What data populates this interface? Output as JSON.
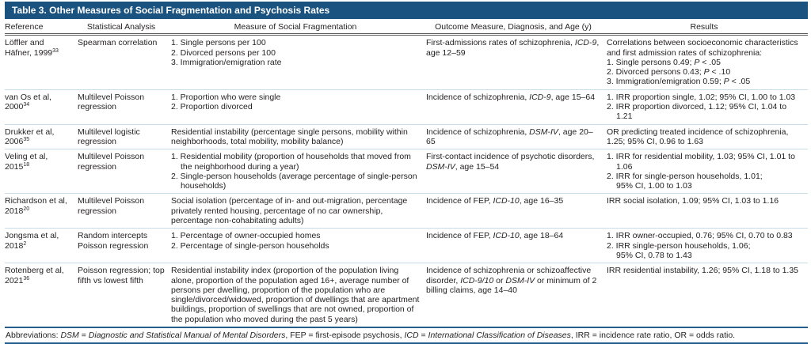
{
  "colors": {
    "header_bar": "#1b5380",
    "rule_blue": "#255d8c",
    "row_divider": "#c9dcea"
  },
  "table": {
    "title": "Table 3. Other Measures of Social Fragmentation and Psychosis Rates",
    "columns": [
      "Reference",
      "Statistical Analysis",
      "Measure of Social Fragmentation",
      "Outcome Measure, Diagnosis, and Age (y)",
      "Results"
    ],
    "rows": [
      {
        "reference": [
          {
            "s": [
              "Löffler and Häfner, 1999",
              {
                "t": "33",
                "sup": true
              }
            ]
          }
        ],
        "analysis": [
          {
            "s": [
              "Spearman correlation"
            ]
          }
        ],
        "measure": [
          {
            "s": [
              "1. Single persons per 100"
            ],
            "hang": true
          },
          {
            "s": [
              "2. Divorced persons per 100"
            ],
            "hang": true
          },
          {
            "s": [
              "3. Immigration/emigration rate"
            ],
            "hang": true
          }
        ],
        "outcome": [
          {
            "s": [
              "First-admissions rates of schizophrenia, ",
              {
                "t": "ICD-9",
                "i": true
              },
              ", age 12–59"
            ]
          }
        ],
        "results": [
          {
            "s": [
              "Correlations between socioeconomic characteristics and first admission rates of schizophrenia:"
            ]
          },
          {
            "s": [
              "1. Single persons 0.49; ",
              {
                "t": "P",
                "i": true
              },
              " < .05"
            ],
            "hang": true
          },
          {
            "s": [
              "2. Divorced persons 0.43; ",
              {
                "t": "P",
                "i": true
              },
              " < .10"
            ],
            "hang": true
          },
          {
            "s": [
              "3. Immigration/emigration 0.59; ",
              {
                "t": "P",
                "i": true
              },
              " < .05"
            ],
            "hang": true
          }
        ]
      },
      {
        "reference": [
          {
            "s": [
              "van Os et al, 2000",
              {
                "t": "34",
                "sup": true
              }
            ]
          }
        ],
        "analysis": [
          {
            "s": [
              "Multilevel Poisson regression"
            ]
          }
        ],
        "measure": [
          {
            "s": [
              "1. Proportion who were single"
            ],
            "hang": true
          },
          {
            "s": [
              "2. Proportion divorced"
            ],
            "hang": true
          }
        ],
        "outcome": [
          {
            "s": [
              "Incidence of schizophrenia, ",
              {
                "t": "ICD-9",
                "i": true
              },
              ", age 15–64"
            ]
          }
        ],
        "results": [
          {
            "s": [
              "1. IRR proportion single, 1.02; 95% CI, 1.00 to 1.03"
            ],
            "hang": true
          },
          {
            "s": [
              "2. IRR proportion divorced, 1.12; 95% CI, 1.04 to 1.21"
            ],
            "hang": true
          }
        ]
      },
      {
        "reference": [
          {
            "s": [
              "Drukker et al, 2006",
              {
                "t": "35",
                "sup": true
              }
            ]
          }
        ],
        "analysis": [
          {
            "s": [
              "Multilevel logistic regression"
            ]
          }
        ],
        "measure": [
          {
            "s": [
              "Residential instability (percentage single persons, mobility within neighborhoods, total mobility, mobility balance)"
            ]
          }
        ],
        "outcome": [
          {
            "s": [
              "Incidence of schizophrenia, ",
              {
                "t": "DSM-IV",
                "i": true
              },
              ", age 20–65"
            ]
          }
        ],
        "results": [
          {
            "s": [
              "OR predicting treated incidence of schizophrenia, 1.25; 95% CI, 0.96 to 1.63"
            ]
          }
        ]
      },
      {
        "reference": [
          {
            "s": [
              "Veling et al, 2015",
              {
                "t": "18",
                "sup": true
              }
            ]
          }
        ],
        "analysis": [
          {
            "s": [
              "Multilevel Poisson regression"
            ]
          }
        ],
        "measure": [
          {
            "s": [
              "1. Residential mobility (proportion of households that moved from the neighborhood during a year)"
            ],
            "hang": true
          },
          {
            "s": [
              "2. Single-person households (average percentage of single-person households)"
            ],
            "hang": true
          }
        ],
        "outcome": [
          {
            "s": [
              "First-contact incidence of psychotic disorders, ",
              {
                "t": "DSM-IV",
                "i": true
              },
              ", age 15–54"
            ]
          }
        ],
        "results": [
          {
            "s": [
              "1. IRR for residential mobility, 1.03; 95% CI, 1.01 to 1.06"
            ],
            "hang": true
          },
          {
            "s": [
              "2. IRR for single-person households, 1.01;"
            ],
            "hang": true
          },
          {
            "s": [
              "95% CI, 1.00 to 1.03"
            ],
            "cont": true
          }
        ]
      },
      {
        "reference": [
          {
            "s": [
              "Richardson et al, 2018",
              {
                "t": "20",
                "sup": true
              }
            ]
          }
        ],
        "analysis": [
          {
            "s": [
              "Multilevel Poisson regression"
            ]
          }
        ],
        "measure": [
          {
            "s": [
              "Social isolation (percentage of in- and out-migration, percentage privately rented housing, percentage of no car ownership, percentage non-cohabitating adults)"
            ]
          }
        ],
        "outcome": [
          {
            "s": [
              "Incidence of FEP, ",
              {
                "t": "ICD-10",
                "i": true
              },
              ", age 16–35"
            ]
          }
        ],
        "results": [
          {
            "s": [
              "IRR social isolation, 1.09; 95% CI, 1.03 to 1.16"
            ]
          }
        ]
      },
      {
        "reference": [
          {
            "s": [
              "Jongsma et al, 2018",
              {
                "t": "2",
                "sup": true
              }
            ]
          }
        ],
        "analysis": [
          {
            "s": [
              "Random intercepts Poisson regression"
            ]
          }
        ],
        "measure": [
          {
            "s": [
              "1. Percentage of owner-occupied homes"
            ],
            "hang": true
          },
          {
            "s": [
              "2. Percentage of single-person households"
            ],
            "hang": true
          }
        ],
        "outcome": [
          {
            "s": [
              "Incidence of FEP, ",
              {
                "t": "ICD-10",
                "i": true
              },
              ", age 18–64"
            ]
          }
        ],
        "results": [
          {
            "s": [
              "1. IRR owner-occupied, 0.76; 95% CI, 0.70 to 0.83"
            ],
            "hang": true
          },
          {
            "s": [
              "2. IRR single-person households, 1.06;"
            ],
            "hang": true
          },
          {
            "s": [
              "95% CI, 0.78 to 1.43"
            ],
            "cont": true
          }
        ]
      },
      {
        "reference": [
          {
            "s": [
              "Rotenberg et al, 2021",
              {
                "t": "36",
                "sup": true
              }
            ]
          }
        ],
        "analysis": [
          {
            "s": [
              "Poisson regression; top fifth vs lowest fifth"
            ]
          }
        ],
        "measure": [
          {
            "s": [
              "Residential instability index (proportion of the population living alone, proportion of the population aged 16+, average number of persons per dwelling, proportion of the population who are single/divorced/widowed, proportion of dwellings that are apartment buildings, proportion of swellings that are not owned, proportion of the population who moved during the past 5 years)"
            ]
          }
        ],
        "outcome": [
          {
            "s": [
              "Incidence of schizophrenia or schizoaffective disorder, ",
              {
                "t": "ICD-9/10",
                "i": true
              },
              " or ",
              {
                "t": "DSM-IV",
                "i": true
              },
              " or minimum of 2 billing claims, age 14–40"
            ]
          }
        ],
        "results": [
          {
            "s": [
              "IRR residential instability, 1.26; 95% CI, 1.18 to 1.35"
            ]
          }
        ]
      }
    ],
    "footnote": [
      {
        "s": [
          "Abbreviations: ",
          {
            "t": "DSM",
            "i": true
          },
          " = ",
          {
            "t": "Diagnostic and Statistical Manual of Mental Disorders",
            "i": true
          },
          ", FEP = first-episode psychosis, ",
          {
            "t": "ICD",
            "i": true
          },
          " = ",
          {
            "t": "International Classification of Diseases",
            "i": true
          },
          ", IRR = incidence rate ratio, OR = odds ratio."
        ]
      }
    ]
  }
}
